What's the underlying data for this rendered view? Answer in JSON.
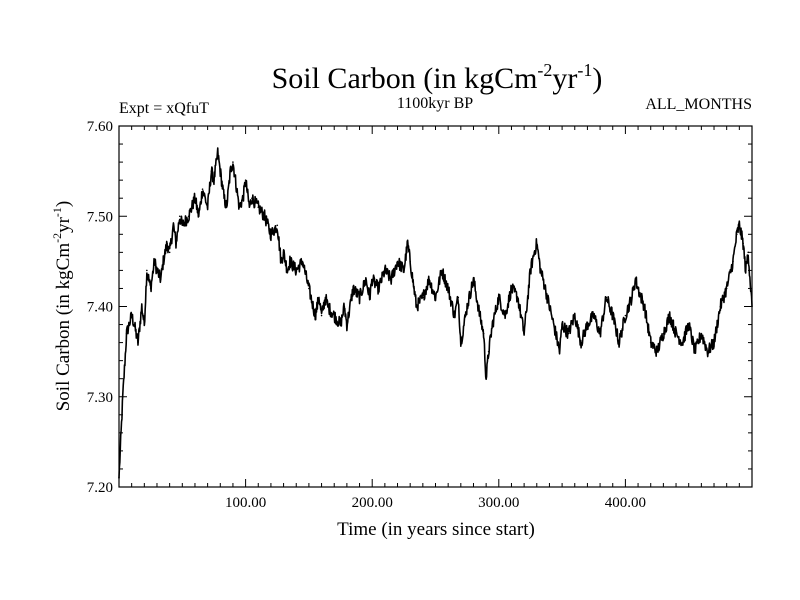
{
  "chart_data": {
    "type": "line",
    "title": {
      "main": "Soil Carbon (in kgCm",
      "sup1": "-2",
      "mid": "yr",
      "sup2": "-1",
      "end": ")"
    },
    "subtitle_left": "Expt = xQfuT",
    "subtitle_center": "1100kyr BP",
    "subtitle_right": "ALL_MONTHS",
    "xlabel": "Time (in years since start)",
    "ylabel": {
      "main": "Soil Carbon (in kgCm",
      "sup1": "-2",
      "mid": "yr",
      "sup2": "-1",
      "end": ")"
    },
    "xlim": [
      0,
      500
    ],
    "ylim": [
      7.2,
      7.6
    ],
    "x_ticks": [
      {
        "value": 100,
        "label": "100.00"
      },
      {
        "value": 200,
        "label": "200.00"
      },
      {
        "value": 300,
        "label": "300.00"
      },
      {
        "value": 400,
        "label": "400.00"
      }
    ],
    "y_ticks": [
      {
        "value": 7.2,
        "label": "7.20"
      },
      {
        "value": 7.3,
        "label": "7.30"
      },
      {
        "value": 7.4,
        "label": "7.40"
      },
      {
        "value": 7.5,
        "label": "7.50"
      },
      {
        "value": 7.6,
        "label": "7.60"
      }
    ],
    "grid": false,
    "series": [
      {
        "name": "Soil Carbon",
        "color": "#000000",
        "x": [
          0,
          3,
          6,
          10,
          12,
          15,
          18,
          20,
          22,
          25,
          28,
          30,
          33,
          35,
          38,
          40,
          43,
          45,
          48,
          50,
          55,
          60,
          63,
          66,
          70,
          73,
          75,
          78,
          80,
          83,
          85,
          88,
          90,
          93,
          95,
          98,
          100,
          103,
          105,
          110,
          115,
          120,
          125,
          128,
          130,
          133,
          135,
          140,
          145,
          150,
          155,
          158,
          160,
          163,
          165,
          170,
          175,
          178,
          180,
          185,
          190,
          195,
          198,
          200,
          205,
          210,
          215,
          220,
          225,
          228,
          230,
          233,
          235,
          240,
          245,
          250,
          255,
          260,
          265,
          268,
          270,
          275,
          280,
          285,
          288,
          290,
          292,
          295,
          300,
          305,
          310,
          315,
          320,
          325,
          328,
          330,
          333,
          335,
          340,
          345,
          348,
          350,
          355,
          360,
          365,
          370,
          375,
          380,
          385,
          390,
          395,
          400,
          405,
          408,
          410,
          415,
          420,
          425,
          430,
          435,
          440,
          445,
          450,
          455,
          460,
          465,
          470,
          475,
          480,
          485,
          488,
          490,
          493,
          495,
          497,
          500
        ],
        "values": [
          7.21,
          7.3,
          7.37,
          7.39,
          7.38,
          7.36,
          7.4,
          7.38,
          7.44,
          7.42,
          7.45,
          7.44,
          7.43,
          7.45,
          7.47,
          7.46,
          7.49,
          7.47,
          7.5,
          7.49,
          7.5,
          7.52,
          7.5,
          7.53,
          7.51,
          7.55,
          7.54,
          7.57,
          7.55,
          7.52,
          7.51,
          7.55,
          7.56,
          7.53,
          7.51,
          7.52,
          7.54,
          7.51,
          7.52,
          7.51,
          7.5,
          7.48,
          7.49,
          7.45,
          7.46,
          7.44,
          7.45,
          7.44,
          7.45,
          7.42,
          7.39,
          7.41,
          7.39,
          7.41,
          7.4,
          7.39,
          7.38,
          7.4,
          7.38,
          7.42,
          7.41,
          7.43,
          7.41,
          7.43,
          7.42,
          7.44,
          7.43,
          7.45,
          7.44,
          7.47,
          7.45,
          7.42,
          7.4,
          7.41,
          7.43,
          7.41,
          7.44,
          7.42,
          7.39,
          7.41,
          7.36,
          7.4,
          7.43,
          7.39,
          7.37,
          7.32,
          7.35,
          7.38,
          7.41,
          7.39,
          7.42,
          7.41,
          7.37,
          7.44,
          7.46,
          7.47,
          7.44,
          7.43,
          7.4,
          7.37,
          7.35,
          7.38,
          7.37,
          7.39,
          7.36,
          7.38,
          7.39,
          7.37,
          7.41,
          7.39,
          7.36,
          7.39,
          7.41,
          7.43,
          7.42,
          7.4,
          7.36,
          7.35,
          7.37,
          7.39,
          7.37,
          7.36,
          7.38,
          7.35,
          7.37,
          7.35,
          7.36,
          7.4,
          7.42,
          7.45,
          7.48,
          7.49,
          7.47,
          7.44,
          7.46,
          7.4
        ]
      }
    ]
  }
}
